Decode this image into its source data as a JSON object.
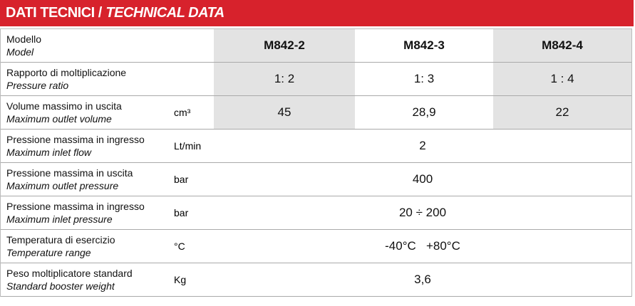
{
  "header": {
    "title": "DATI TECNICI /",
    "title_en": "TECHNICAL DATA"
  },
  "table": {
    "rows": [
      {
        "label": "Modello",
        "label_en": "Model",
        "values": [
          "M842-2",
          "M842-3",
          "M842-4"
        ]
      },
      {
        "label": "Rapporto di moltiplicazione",
        "label_en": "Pressure ratio",
        "values": [
          "1: 2",
          "1: 3",
          "1 : 4"
        ]
      },
      {
        "label": "Volume massimo in uscita",
        "label_en": "Maximum outlet volume",
        "unit": "cm³",
        "values": [
          "45",
          "28,9",
          "22"
        ]
      },
      {
        "label": "Pressione massima in ingresso",
        "label_en": "Maximum inlet flow",
        "unit": "Lt/min",
        "values": [
          "2"
        ]
      },
      {
        "label": "Pressione massima in uscita",
        "label_en": "Maximum outlet pressure",
        "unit": "bar",
        "values": [
          "400"
        ]
      },
      {
        "label": "Pressione massima in ingresso",
        "label_en": "Maximum inlet pressure",
        "unit": "bar",
        "values": [
          "20 ÷ 200"
        ]
      },
      {
        "label": "Temperatura di esercizio",
        "label_en": "Temperature range",
        "unit": "°C",
        "values": [
          "-40°C   +80°C"
        ]
      },
      {
        "label": "Peso moltiplicatore standard",
        "label_en": "Standard booster weight",
        "unit": "Kg",
        "values": [
          "3,6"
        ]
      }
    ]
  }
}
